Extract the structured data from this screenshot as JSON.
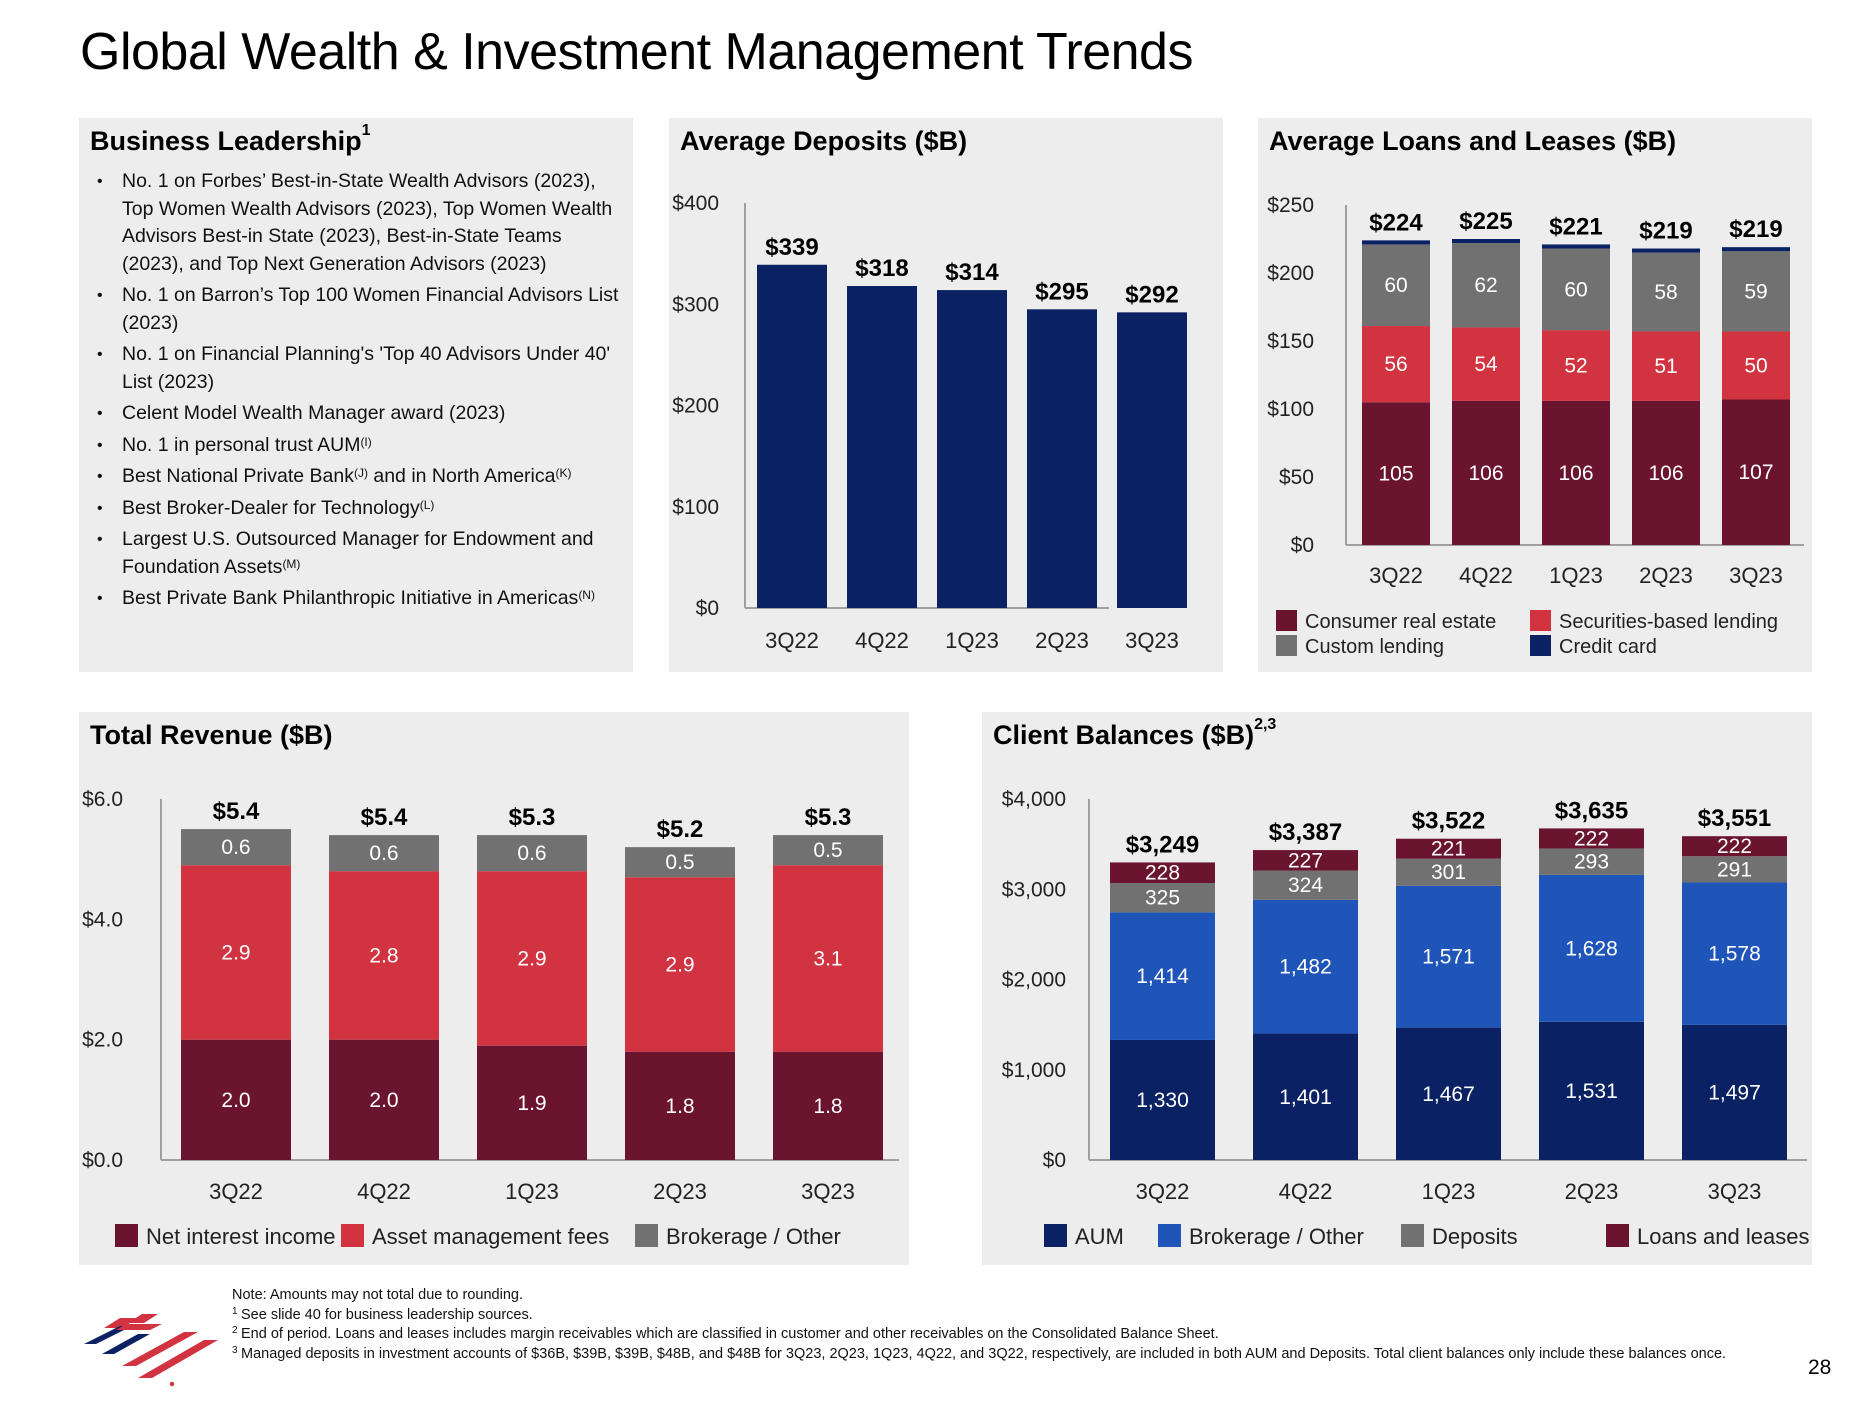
{
  "page": {
    "title": "Global Wealth & Investment Management Trends",
    "page_number": "28"
  },
  "leadership": {
    "title": "Business Leadership",
    "title_sup": "1",
    "items": [
      {
        "text": "No. 1 on Forbes’ Best-in-State Wealth Advisors (2023), Top Women Wealth Advisors (2023), Top Women Wealth Advisors Best-in State (2023), Best-in-State Teams (2023), and Top Next Generation Advisors (2023)",
        "sup": ""
      },
      {
        "text": "No. 1 on Barron’s Top 100 Women Financial Advisors List (2023)",
        "sup": ""
      },
      {
        "text": "No. 1 on Financial Planning's 'Top 40 Advisors Under 40' List (2023)",
        "sup": ""
      },
      {
        "text": "Celent Model Wealth Manager award (2023)",
        "sup": ""
      },
      {
        "text": "No. 1 in personal trust AUM",
        "sup": "(I)"
      },
      {
        "text": "Best National Private Bank",
        "sup": "(J)",
        "text2": " and in North America",
        "sup2": "(K)"
      },
      {
        "text": "Best Broker-Dealer for Technology",
        "sup": "(L)"
      },
      {
        "text": "Largest U.S. Outsourced Manager for Endowment and Foundation Assets",
        "sup": "(M)"
      },
      {
        "text": "Best Private Bank Philanthropic Initiative in Americas",
        "sup": "(N)"
      }
    ]
  },
  "colors": {
    "navy": "#0a2263",
    "maroon": "#6b1430",
    "red": "#d13340",
    "gray": "#717171",
    "royal_blue": "#1f55b8",
    "panel_bg": "#ededed",
    "axis": "#999999"
  },
  "chart_data": [
    {
      "id": "deposits",
      "type": "bar",
      "title": "Average Deposits ($B)",
      "categories": [
        "3Q22",
        "4Q22",
        "1Q23",
        "2Q23",
        "3Q23"
      ],
      "values": [
        339,
        318,
        314,
        295,
        292
      ],
      "total_labels": [
        "$339",
        "$318",
        "$314",
        "$295",
        "$292"
      ],
      "yticks": [
        "$0",
        "$100",
        "$200",
        "$300",
        "$400"
      ],
      "ytick_values": [
        0,
        100,
        200,
        300,
        400
      ],
      "ylim": [
        0,
        400
      ],
      "xlabel": "",
      "ylabel": "",
      "grid": false
    },
    {
      "id": "loans",
      "type": "bar",
      "stacked": true,
      "title": "Average Loans and Leases ($B)",
      "categories": [
        "3Q22",
        "4Q22",
        "1Q23",
        "2Q23",
        "3Q23"
      ],
      "series": [
        {
          "name": "Consumer real estate",
          "color_key": "maroon",
          "values": [
            105,
            106,
            106,
            106,
            107
          ],
          "labels": [
            "105",
            "106",
            "106",
            "106",
            "107"
          ]
        },
        {
          "name": "Securities-based lending",
          "color_key": "red",
          "values": [
            56,
            54,
            52,
            51,
            50
          ],
          "labels": [
            "56",
            "54",
            "52",
            "51",
            "50"
          ]
        },
        {
          "name": "Custom lending",
          "color_key": "gray",
          "values": [
            60,
            62,
            60,
            58,
            59
          ],
          "labels": [
            "60",
            "62",
            "60",
            "58",
            "59"
          ]
        },
        {
          "name": "Credit card",
          "color_key": "navy",
          "values": [
            3,
            3,
            3,
            3,
            3
          ],
          "labels": [
            "",
            "",
            "",
            "",
            ""
          ]
        }
      ],
      "totals": [
        224,
        225,
        221,
        219,
        219
      ],
      "total_labels": [
        "$224",
        "$225",
        "$221",
        "$219",
        "$219"
      ],
      "yticks": [
        "$0",
        "$50",
        "$100",
        "$150",
        "$200",
        "$250"
      ],
      "ytick_values": [
        0,
        50,
        100,
        150,
        200,
        250
      ],
      "ylim": [
        0,
        250
      ],
      "legend": [
        {
          "label": "Consumer real estate",
          "color_key": "maroon"
        },
        {
          "label": "Securities-based lending",
          "color_key": "red"
        },
        {
          "label": "Custom lending",
          "color_key": "gray"
        },
        {
          "label": "Credit card",
          "color_key": "navy"
        }
      ],
      "legend_position": "bottom",
      "grid": false
    },
    {
      "id": "revenue",
      "type": "bar",
      "stacked": true,
      "title": "Total Revenue ($B)",
      "categories": [
        "3Q22",
        "4Q22",
        "1Q23",
        "2Q23",
        "3Q23"
      ],
      "series": [
        {
          "name": "Net interest income",
          "color_key": "maroon",
          "values": [
            2.0,
            2.0,
            1.9,
            1.8,
            1.8
          ],
          "labels": [
            "2.0",
            "2.0",
            "1.9",
            "1.8",
            "1.8"
          ]
        },
        {
          "name": "Asset management fees",
          "color_key": "red",
          "values": [
            2.9,
            2.8,
            2.9,
            2.9,
            3.1
          ],
          "labels": [
            "2.9",
            "2.8",
            "2.9",
            "2.9",
            "3.1"
          ]
        },
        {
          "name": "Brokerage / Other",
          "color_key": "gray",
          "values": [
            0.6,
            0.6,
            0.6,
            0.5,
            0.5
          ],
          "labels": [
            "0.6",
            "0.6",
            "0.6",
            "0.5",
            "0.5"
          ]
        }
      ],
      "totals": [
        5.4,
        5.4,
        5.3,
        5.2,
        5.3
      ],
      "total_labels": [
        "$5.4",
        "$5.4",
        "$5.3",
        "$5.2",
        "$5.3"
      ],
      "yticks": [
        "$0.0",
        "$2.0",
        "$4.0",
        "$6.0"
      ],
      "ytick_values": [
        0,
        2,
        4,
        6
      ],
      "ylim": [
        0,
        6
      ],
      "legend": [
        {
          "label": "Net interest income",
          "color_key": "maroon"
        },
        {
          "label": "Asset management fees",
          "color_key": "red"
        },
        {
          "label": "Brokerage / Other",
          "color_key": "gray"
        }
      ],
      "legend_position": "bottom",
      "grid": false
    },
    {
      "id": "client",
      "type": "bar",
      "stacked": true,
      "title": "Client Balances ($B)",
      "title_sup": "2,3",
      "categories": [
        "3Q22",
        "4Q22",
        "1Q23",
        "2Q23",
        "3Q23"
      ],
      "series": [
        {
          "name": "AUM",
          "color_key": "navy",
          "values": [
            1330,
            1401,
            1467,
            1531,
            1497
          ],
          "labels": [
            "1,330",
            "1,401",
            "1,467",
            "1,531",
            "1,497"
          ]
        },
        {
          "name": "Brokerage / Other",
          "color_key": "royal_blue",
          "values": [
            1414,
            1482,
            1571,
            1628,
            1578
          ],
          "labels": [
            "1,414",
            "1,482",
            "1,571",
            "1,628",
            "1,578"
          ]
        },
        {
          "name": "Deposits",
          "color_key": "gray",
          "values": [
            325,
            324,
            301,
            293,
            291
          ],
          "labels": [
            "325",
            "324",
            "301",
            "293",
            "291"
          ]
        },
        {
          "name": "Loans and leases",
          "color_key": "maroon",
          "values": [
            228,
            227,
            221,
            222,
            222
          ],
          "labels": [
            "228",
            "227",
            "221",
            "222",
            "222"
          ]
        }
      ],
      "totals": [
        3249,
        3387,
        3522,
        3635,
        3551
      ],
      "total_labels": [
        "$3,249",
        "$3,387",
        "$3,522",
        "$3,635",
        "$3,551"
      ],
      "yticks": [
        "$0",
        "$1,000",
        "$2,000",
        "$3,000",
        "$4,000"
      ],
      "ytick_values": [
        0,
        1000,
        2000,
        3000,
        4000
      ],
      "ylim": [
        0,
        4000
      ],
      "legend": [
        {
          "label": "AUM",
          "color_key": "navy"
        },
        {
          "label": "Brokerage / Other",
          "color_key": "royal_blue"
        },
        {
          "label": "Deposits",
          "color_key": "gray"
        },
        {
          "label": "Loans and leases",
          "color_key": "maroon"
        }
      ],
      "legend_position": "bottom",
      "grid": false
    }
  ],
  "notes": {
    "note": "Note: Amounts may not total due to rounding.",
    "footnotes": [
      {
        "num": "1",
        "text": "See slide 40 for business leadership sources."
      },
      {
        "num": "2",
        "text": "End of period. Loans and leases includes margin receivables which are classified in customer and other receivables on the Consolidated Balance Sheet."
      },
      {
        "num": "3",
        "text": "Managed deposits in investment accounts of $36B, $39B, $39B, $48B, and $48B for 3Q23, 2Q23, 1Q23, 4Q22, and 3Q22, respectively, are included in both AUM and Deposits. Total client balances only include these balances once."
      }
    ]
  },
  "logo": {
    "icon": "bank-flag-logo-icon"
  }
}
